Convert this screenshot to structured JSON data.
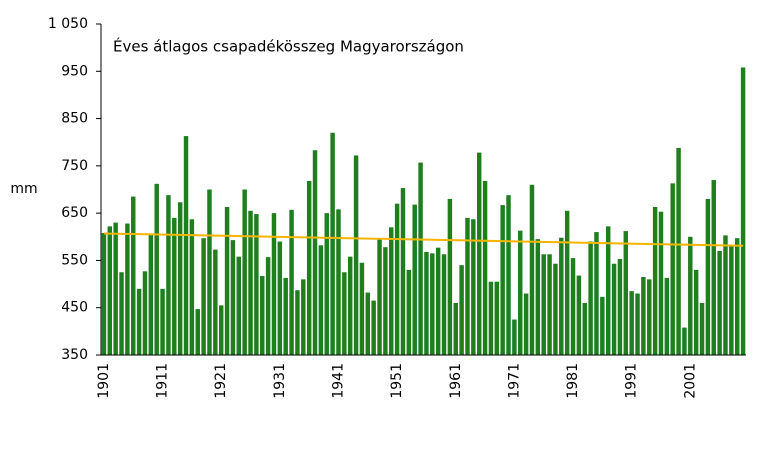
{
  "chart_data": {
    "type": "bar",
    "title": "Éves átlagos csapadékösszeg Magyarországon",
    "y_label": "mm",
    "categories": [
      "1901",
      null,
      null,
      null,
      null,
      null,
      null,
      null,
      null,
      null,
      "1911",
      null,
      null,
      null,
      null,
      null,
      null,
      null,
      null,
      null,
      "1921",
      null,
      null,
      null,
      null,
      null,
      null,
      null,
      null,
      null,
      "1931",
      null,
      null,
      null,
      null,
      null,
      null,
      null,
      null,
      null,
      "1941",
      null,
      null,
      null,
      null,
      null,
      null,
      null,
      null,
      null,
      "1951",
      null,
      null,
      null,
      null,
      null,
      null,
      null,
      null,
      null,
      "1961",
      null,
      null,
      null,
      null,
      null,
      null,
      null,
      null,
      null,
      "1971",
      null,
      null,
      null,
      null,
      null,
      null,
      null,
      null,
      null,
      "1981",
      null,
      null,
      null,
      null,
      null,
      null,
      null,
      null,
      null,
      "1991",
      null,
      null,
      null,
      null,
      null,
      null,
      null,
      null,
      null,
      "2001",
      null,
      null,
      null,
      null,
      null,
      null,
      null,
      null,
      null
    ],
    "values": [
      608,
      622,
      630,
      525,
      628,
      685,
      490,
      527,
      605,
      712,
      490,
      688,
      640,
      673,
      813,
      637,
      447,
      597,
      700,
      573,
      455,
      663,
      593,
      558,
      700,
      655,
      648,
      517,
      557,
      650,
      590,
      513,
      657,
      487,
      510,
      718,
      783,
      582,
      650,
      820,
      658,
      525,
      558,
      772,
      545,
      482,
      465,
      595,
      578,
      620,
      670,
      703,
      530,
      668,
      757,
      568,
      565,
      577,
      563,
      680,
      460,
      540,
      640,
      637,
      778,
      718,
      505,
      505,
      667,
      688,
      425,
      613,
      480,
      710,
      595,
      563,
      563,
      543,
      598,
      655,
      555,
      518,
      460,
      590,
      610,
      473,
      622,
      543,
      553,
      612,
      485,
      480,
      515,
      510,
      663,
      653,
      513,
      713,
      788,
      408,
      600,
      530,
      460,
      680,
      720,
      570,
      603,
      580,
      597,
      958
    ],
    "color": "#1f7f1f",
    "trend": {
      "color": "#f5b400",
      "values": [
        607,
        581
      ]
    },
    "ylim": [
      350,
      1050
    ],
    "yticks": [
      350,
      450,
      550,
      650,
      750,
      850,
      950,
      {
        "value": 1050,
        "label": "1 050"
      }
    ]
  }
}
